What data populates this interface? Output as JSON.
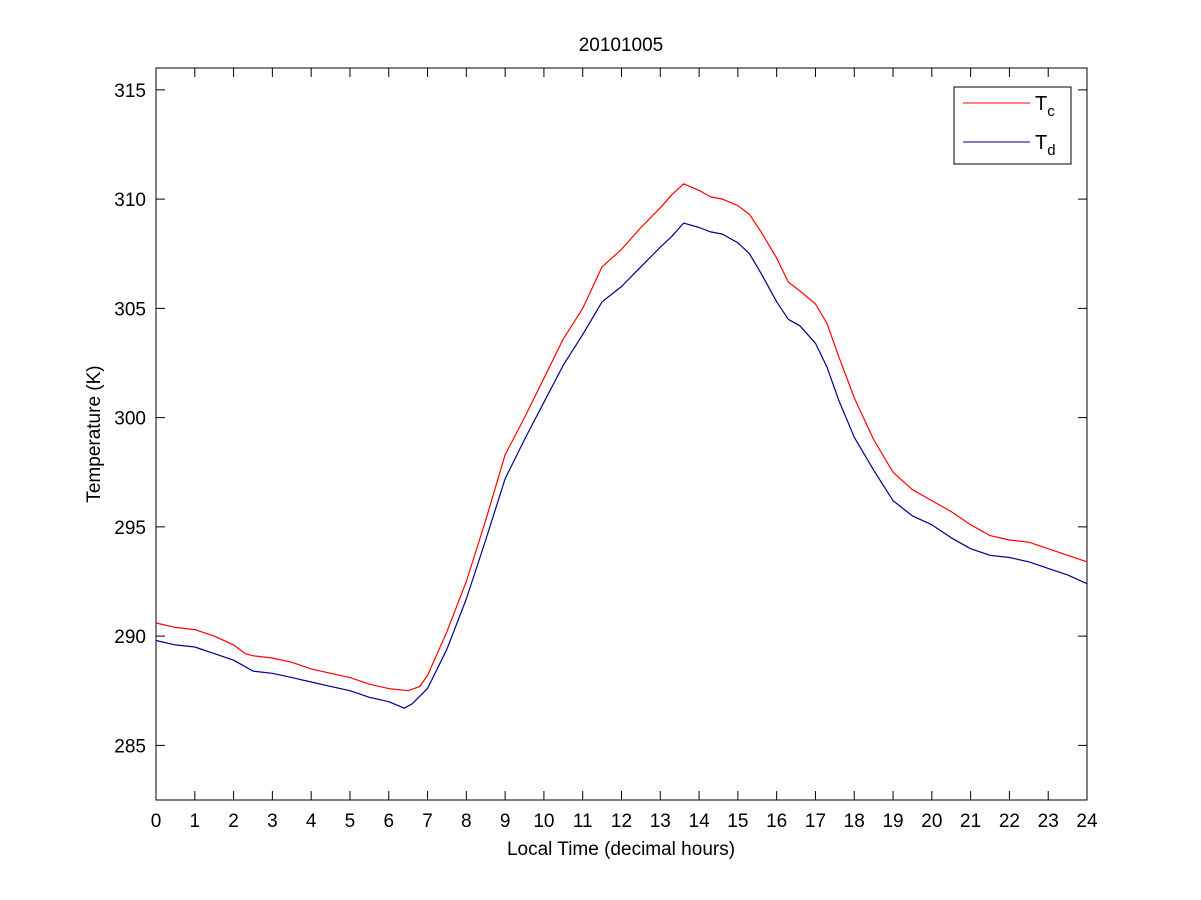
{
  "chart_data": {
    "type": "line",
    "title": "20101005",
    "xlabel": "Local Time (decimal hours)",
    "ylabel": "Temperature (K)",
    "xlim": [
      0,
      24
    ],
    "ylim": [
      282.5,
      316
    ],
    "xticks": [
      0,
      1,
      2,
      3,
      4,
      5,
      6,
      7,
      8,
      9,
      10,
      11,
      12,
      13,
      14,
      15,
      16,
      17,
      18,
      19,
      20,
      21,
      22,
      23,
      24
    ],
    "yticks": [
      285,
      290,
      295,
      300,
      305,
      310,
      315
    ],
    "grid": false,
    "legend_position": "top-right",
    "series": [
      {
        "name": "T",
        "subscript": "c",
        "color": "#ff0000",
        "x": [
          0,
          0.5,
          1,
          1.5,
          2,
          2.3,
          2.5,
          3,
          3.5,
          4,
          4.5,
          5,
          5.5,
          6,
          6.5,
          6.8,
          7,
          7.5,
          8,
          8.5,
          9,
          9.5,
          10,
          10.5,
          11,
          11.5,
          12,
          12.5,
          13,
          13.3,
          13.6,
          14,
          14.3,
          14.6,
          15,
          15.3,
          15.6,
          16,
          16.3,
          16.6,
          17,
          17.3,
          17.6,
          18,
          18.5,
          19,
          19.5,
          20,
          20.5,
          21,
          21.5,
          22,
          22.5,
          23,
          23.5,
          24
        ],
        "y": [
          290.6,
          290.4,
          290.3,
          290.0,
          289.6,
          289.2,
          289.1,
          289.0,
          288.8,
          288.5,
          288.3,
          288.1,
          287.8,
          287.6,
          287.5,
          287.7,
          288.2,
          290.2,
          292.5,
          295.3,
          298.3,
          300.0,
          301.8,
          303.6,
          305.0,
          306.9,
          307.7,
          308.7,
          309.6,
          310.2,
          310.7,
          310.4,
          310.1,
          310.0,
          309.7,
          309.3,
          308.5,
          307.3,
          306.2,
          305.8,
          305.2,
          304.3,
          302.8,
          300.9,
          299.0,
          297.5,
          296.7,
          296.2,
          295.7,
          295.1,
          294.6,
          294.4,
          294.3,
          294.0,
          293.7,
          293.4
        ]
      },
      {
        "name": "T",
        "subscript": "d",
        "color": "#00008b",
        "x": [
          0,
          0.5,
          1,
          1.5,
          2,
          2.3,
          2.5,
          3,
          3.5,
          4,
          4.5,
          5,
          5.5,
          6,
          6.4,
          6.6,
          7,
          7.5,
          8,
          8.5,
          9,
          9.5,
          10,
          10.5,
          11,
          11.5,
          12,
          12.5,
          13,
          13.3,
          13.6,
          14,
          14.3,
          14.6,
          15,
          15.3,
          15.6,
          16,
          16.3,
          16.6,
          17,
          17.3,
          17.6,
          18,
          18.5,
          19,
          19.5,
          20,
          20.5,
          21,
          21.5,
          22,
          22.5,
          23,
          23.5,
          24
        ],
        "y": [
          289.8,
          289.6,
          289.5,
          289.2,
          288.9,
          288.6,
          288.4,
          288.3,
          288.1,
          287.9,
          287.7,
          287.5,
          287.2,
          287.0,
          286.7,
          286.9,
          287.6,
          289.4,
          291.7,
          294.4,
          297.2,
          299.0,
          300.7,
          302.4,
          303.8,
          305.3,
          306.0,
          306.9,
          307.8,
          308.3,
          308.9,
          308.7,
          308.5,
          308.4,
          308.0,
          307.5,
          306.6,
          305.3,
          304.5,
          304.2,
          303.4,
          302.3,
          300.8,
          299.1,
          297.6,
          296.2,
          295.5,
          295.1,
          294.5,
          294.0,
          293.7,
          293.6,
          293.4,
          293.1,
          292.8,
          292.4
        ]
      }
    ]
  }
}
